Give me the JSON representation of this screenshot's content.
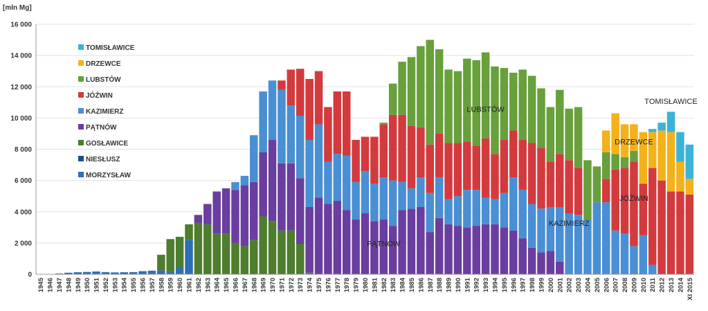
{
  "chart_data": {
    "type": "bar",
    "stacked": true,
    "ylabel": "[mln Mg]",
    "ylim": [
      0,
      16000
    ],
    "yticks": [
      "0",
      "2 000",
      "4 000",
      "6 000",
      "8 000",
      "10 000",
      "12 000",
      "14 000",
      "16 000"
    ],
    "ytick_values": [
      0,
      2000,
      4000,
      6000,
      8000,
      10000,
      12000,
      14000,
      16000
    ],
    "grid": true,
    "legend_position": "top-left",
    "categories": [
      "1945",
      "1946",
      "1947",
      "1948",
      "1949",
      "1950",
      "1951",
      "1952",
      "1953",
      "1954",
      "1955",
      "1956",
      "1957",
      "1958",
      "1959",
      "1960",
      "1961",
      "1962",
      "1963",
      "1964",
      "1965",
      "1966",
      "1967",
      "1968",
      "1969",
      "1970",
      "1971",
      "1972",
      "1973",
      "1974",
      "1975",
      "1976",
      "1977",
      "1978",
      "1979",
      "1980",
      "1981",
      "1982",
      "1983",
      "1984",
      "1985",
      "1986",
      "1987",
      "1988",
      "1989",
      "1990",
      "1991",
      "1992",
      "1993",
      "1994",
      "1995",
      "1996",
      "1997",
      "1998",
      "1999",
      "2000",
      "2001",
      "2002",
      "2003",
      "2004",
      "2005",
      "2006",
      "2007",
      "2008",
      "2009",
      "2010",
      "2011",
      "2012",
      "2013",
      "2014",
      "XI 2015"
    ],
    "series": [
      {
        "name": "MORZYSŁAW",
        "color": "#2e6fb3",
        "values": [
          0,
          0,
          50,
          100,
          130,
          150,
          180,
          140,
          120,
          130,
          140,
          200,
          230,
          250,
          150,
          400,
          2200,
          0,
          0,
          0,
          0,
          0,
          0,
          0,
          0,
          0,
          0,
          0,
          0,
          0,
          0,
          0,
          0,
          0,
          0,
          0,
          0,
          0,
          0,
          0,
          0,
          0,
          0,
          0,
          0,
          0,
          0,
          0,
          0,
          0,
          0,
          0,
          0,
          0,
          0,
          0,
          0,
          0,
          0,
          0,
          0,
          0,
          0,
          0,
          0,
          0,
          0,
          0,
          0,
          0,
          0
        ]
      },
      {
        "name": "NIESŁUSZ",
        "color": "#1b4e8c",
        "values": [
          0,
          0,
          0,
          0,
          0,
          0,
          0,
          0,
          0,
          0,
          0,
          0,
          0,
          0,
          0,
          0,
          0,
          0,
          0,
          0,
          0,
          0,
          0,
          0,
          0,
          0,
          0,
          0,
          0,
          0,
          0,
          0,
          0,
          0,
          0,
          0,
          0,
          0,
          0,
          0,
          0,
          0,
          0,
          0,
          0,
          0,
          0,
          0,
          0,
          0,
          0,
          0,
          0,
          0,
          0,
          0,
          0,
          0,
          0,
          0,
          0,
          0,
          0,
          0,
          0,
          0,
          0,
          0,
          0,
          0,
          0
        ]
      },
      {
        "name": "GOSŁAWICE",
        "color": "#4e7d2e",
        "values": [
          0,
          0,
          0,
          0,
          0,
          0,
          0,
          0,
          0,
          0,
          0,
          0,
          0,
          1000,
          2100,
          2000,
          1000,
          3300,
          3200,
          2600,
          2600,
          2000,
          1800,
          2200,
          3700,
          3400,
          2800,
          2800,
          1950,
          100,
          0,
          0,
          0,
          0,
          0,
          0,
          0,
          0,
          0,
          0,
          0,
          0,
          0,
          0,
          0,
          0,
          0,
          0,
          0,
          0,
          0,
          0,
          0,
          0,
          0,
          0,
          0,
          0,
          0,
          0,
          0,
          0,
          0,
          0,
          0,
          0,
          0,
          0,
          0,
          0,
          0
        ]
      },
      {
        "name": "PĄTNÓW",
        "color": "#6a3e9e",
        "values": [
          0,
          0,
          0,
          0,
          0,
          0,
          0,
          0,
          0,
          0,
          0,
          0,
          0,
          0,
          0,
          0,
          0,
          500,
          1300,
          2700,
          2900,
          3400,
          3900,
          3700,
          4100,
          5200,
          4300,
          4300,
          4200,
          4200,
          4900,
          4500,
          4700,
          4100,
          3500,
          3900,
          3400,
          3500,
          3100,
          4100,
          4200,
          4300,
          2700,
          3600,
          3200,
          3100,
          3000,
          3100,
          3200,
          3200,
          3000,
          2800,
          2300,
          1700,
          1400,
          1500,
          800,
          0,
          0,
          0,
          0,
          0,
          0,
          0,
          0,
          0,
          0,
          0,
          0,
          0,
          0
        ]
      },
      {
        "name": "KAZIMIERZ",
        "color": "#4a8fd3",
        "values": [
          0,
          0,
          0,
          0,
          0,
          0,
          0,
          0,
          0,
          0,
          0,
          0,
          0,
          0,
          0,
          0,
          0,
          0,
          0,
          0,
          0,
          500,
          600,
          3000,
          3900,
          3800,
          4700,
          3700,
          4000,
          4300,
          4700,
          2700,
          3000,
          3500,
          2400,
          2700,
          2400,
          2700,
          2900,
          1800,
          1300,
          1900,
          2500,
          2600,
          1600,
          1900,
          2400,
          2300,
          1700,
          1600,
          2200,
          3400,
          3100,
          2800,
          2800,
          2800,
          3500,
          3900,
          3800,
          3500,
          4600,
          4600,
          2800,
          2600,
          1800,
          2500,
          600,
          0,
          0,
          0,
          0
        ]
      },
      {
        "name": "JÓŹWIN",
        "color": "#d33a3e",
        "values": [
          0,
          0,
          0,
          0,
          0,
          0,
          0,
          0,
          0,
          0,
          0,
          0,
          0,
          0,
          0,
          0,
          0,
          0,
          0,
          0,
          0,
          0,
          0,
          0,
          0,
          0,
          600,
          2300,
          3000,
          3900,
          3400,
          3500,
          4000,
          4100,
          2700,
          2200,
          3000,
          3400,
          4200,
          4300,
          4000,
          3200,
          3100,
          2800,
          3600,
          3400,
          3100,
          2800,
          3800,
          2900,
          3400,
          3000,
          3200,
          3900,
          3900,
          2900,
          3400,
          3400,
          3000,
          0,
          0,
          1500,
          3900,
          4200,
          5400,
          3300,
          6200,
          6000,
          5300,
          5300,
          5100
        ]
      },
      {
        "name": "LUBSTÓW",
        "color": "#68a03b",
        "values": [
          0,
          0,
          0,
          0,
          0,
          0,
          0,
          0,
          0,
          0,
          0,
          0,
          0,
          0,
          0,
          0,
          0,
          0,
          0,
          0,
          0,
          0,
          0,
          0,
          0,
          0,
          0,
          0,
          0,
          0,
          0,
          0,
          0,
          0,
          0,
          0,
          0,
          100,
          2000,
          3400,
          4400,
          5200,
          6700,
          5400,
          4700,
          4600,
          5300,
          5500,
          5500,
          5600,
          4600,
          3700,
          4500,
          4300,
          3800,
          3500,
          4100,
          3300,
          3900,
          3800,
          2300,
          1700,
          1000,
          700,
          700,
          0,
          0,
          0,
          0,
          0,
          0
        ]
      },
      {
        "name": "DRZEWCE",
        "color": "#f3b21b",
        "values": [
          0,
          0,
          0,
          0,
          0,
          0,
          0,
          0,
          0,
          0,
          0,
          0,
          0,
          0,
          0,
          0,
          0,
          0,
          0,
          0,
          0,
          0,
          0,
          0,
          0,
          0,
          0,
          0,
          0,
          0,
          0,
          0,
          0,
          0,
          0,
          0,
          0,
          0,
          0,
          0,
          0,
          0,
          0,
          0,
          0,
          0,
          0,
          0,
          0,
          0,
          0,
          0,
          0,
          0,
          0,
          0,
          0,
          0,
          0,
          0,
          0,
          1400,
          2600,
          2100,
          1700,
          3300,
          2300,
          3200,
          3800,
          1900,
          1000
        ]
      },
      {
        "name": "TOMISŁAWICE",
        "color": "#3cb3d6",
        "values": [
          0,
          0,
          0,
          0,
          0,
          0,
          0,
          0,
          0,
          0,
          0,
          0,
          0,
          0,
          0,
          0,
          0,
          0,
          0,
          0,
          0,
          0,
          0,
          0,
          0,
          0,
          0,
          0,
          0,
          0,
          0,
          0,
          0,
          0,
          0,
          0,
          0,
          0,
          0,
          0,
          0,
          0,
          0,
          0,
          0,
          0,
          0,
          0,
          0,
          0,
          0,
          0,
          0,
          0,
          0,
          0,
          0,
          0,
          0,
          0,
          0,
          0,
          0,
          0,
          0,
          0,
          200,
          500,
          1300,
          1900,
          2200
        ]
      }
    ],
    "annotations": [
      {
        "text": "LUBSTÓW",
        "x": "1993",
        "y": 10400
      },
      {
        "text": "TOMISŁAWICE",
        "x": "2013",
        "y": 10900
      },
      {
        "text": "DRZEWCE",
        "x": "2009",
        "y": 8300
      },
      {
        "text": "JÓŹWIN",
        "x": "2009",
        "y": 4700
      },
      {
        "text": "KAZIMIERZ",
        "x": "2002",
        "y": 3100
      },
      {
        "text": "PĄTNÓW",
        "x": "1982",
        "y": 1800
      }
    ]
  }
}
